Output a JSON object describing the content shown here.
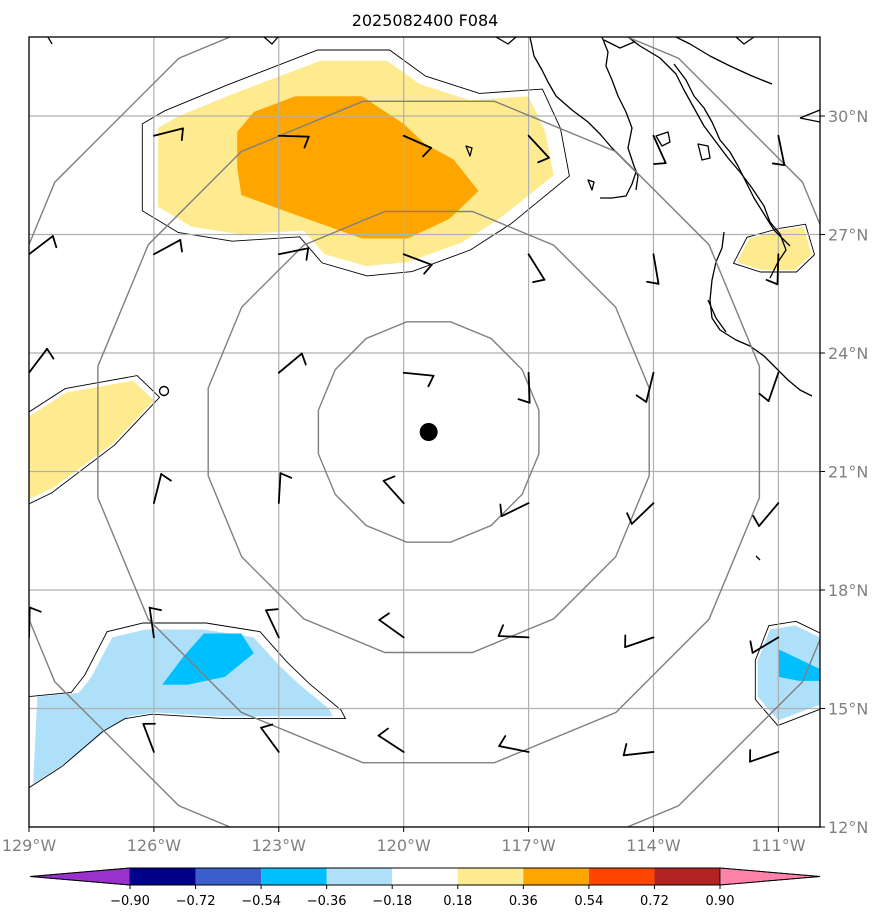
{
  "title": "2025082400 F084",
  "map": {
    "lon_range": [
      -129.0,
      -110.0
    ],
    "lat_range": [
      12.0,
      32.0
    ],
    "lon_ticks": [
      {
        "lon": -129,
        "label": "129°W"
      },
      {
        "lon": -126,
        "label": "126°W"
      },
      {
        "lon": -123,
        "label": "123°W"
      },
      {
        "lon": -120,
        "label": "120°W"
      },
      {
        "lon": -117,
        "label": "117°W"
      },
      {
        "lon": -114,
        "label": "114°W"
      },
      {
        "lon": -111,
        "label": "111°W"
      }
    ],
    "lat_ticks": [
      {
        "lat": 30,
        "label": "30°N"
      },
      {
        "lat": 27,
        "label": "27°N"
      },
      {
        "lat": 24,
        "label": "24°N"
      },
      {
        "lat": 21,
        "label": "21°N"
      },
      {
        "lat": 18,
        "label": "18°N"
      },
      {
        "lat": 15,
        "label": "15°N"
      },
      {
        "lat": 12,
        "label": "12°N"
      }
    ],
    "center": {
      "lon": -119.4,
      "lat": 22.0
    },
    "range_rings_deg": [
      2.7,
      5.4,
      8.1,
      10.8
    ],
    "ring_color": "#808080",
    "grid_color": "#b0b0b0"
  },
  "shaded_areas": [
    {
      "level": "0.18 to 0.36",
      "color": "#ffeb8f",
      "points": [
        [
          -125.9,
          29.7
        ],
        [
          -125.4,
          30.0
        ],
        [
          -124.0,
          30.6
        ],
        [
          -122.0,
          31.4
        ],
        [
          -120.4,
          31.4
        ],
        [
          -119.6,
          30.8
        ],
        [
          -118.4,
          30.4
        ],
        [
          -117.0,
          30.5
        ],
        [
          -116.6,
          29.6
        ],
        [
          -116.4,
          28.5
        ],
        [
          -117.7,
          27.4
        ],
        [
          -118.6,
          26.8
        ],
        [
          -119.9,
          26.3
        ],
        [
          -120.9,
          26.2
        ],
        [
          -121.9,
          26.5
        ],
        [
          -122.4,
          27.1
        ],
        [
          -123.9,
          27.0
        ],
        [
          -125.1,
          27.2
        ],
        [
          -125.9,
          27.7
        ]
      ]
    },
    {
      "level": "0.36 to 0.54",
      "color": "#ffa500",
      "points": [
        [
          -124.0,
          29.6
        ],
        [
          -123.6,
          30.1
        ],
        [
          -122.6,
          30.5
        ],
        [
          -121.0,
          30.5
        ],
        [
          -120.0,
          29.8
        ],
        [
          -119.5,
          29.3
        ],
        [
          -118.8,
          28.9
        ],
        [
          -118.2,
          28.1
        ],
        [
          -118.9,
          27.4
        ],
        [
          -119.9,
          26.9
        ],
        [
          -121.0,
          26.9
        ],
        [
          -122.6,
          27.5
        ],
        [
          -123.9,
          28.0
        ],
        [
          -124.0,
          28.7
        ]
      ]
    },
    {
      "level": "0.18 to 0.36",
      "color": "#ffeb8f",
      "points": [
        [
          -129.0,
          22.4
        ],
        [
          -128.1,
          23.0
        ],
        [
          -126.5,
          23.3
        ],
        [
          -126.0,
          22.8
        ],
        [
          -127.0,
          21.7
        ],
        [
          -128.4,
          20.6
        ],
        [
          -129.0,
          20.3
        ]
      ]
    },
    {
      "level": "0.18 to 0.36",
      "color": "#ffeb8f",
      "points": [
        [
          -111.0,
          27.1
        ],
        [
          -110.4,
          27.2
        ],
        [
          -110.2,
          26.5
        ],
        [
          -110.6,
          26.1
        ],
        [
          -111.4,
          26.1
        ],
        [
          -112.0,
          26.3
        ],
        [
          -111.7,
          26.9
        ]
      ]
    },
    {
      "level": "-0.36 to -0.18",
      "color": "#afe0fa",
      "points": [
        [
          -128.8,
          15.3
        ],
        [
          -127.8,
          15.4
        ],
        [
          -127.5,
          15.8
        ],
        [
          -127.0,
          16.8
        ],
        [
          -126.2,
          17.0
        ],
        [
          -124.8,
          17.0
        ],
        [
          -123.6,
          16.8
        ],
        [
          -123.0,
          16.1
        ],
        [
          -122.5,
          15.6
        ],
        [
          -121.8,
          15.0
        ],
        [
          -121.7,
          14.8
        ],
        [
          -122.6,
          14.8
        ],
        [
          -124.4,
          14.8
        ],
        [
          -126.0,
          14.9
        ],
        [
          -126.6,
          14.8
        ],
        [
          -127.1,
          14.5
        ],
        [
          -128.0,
          13.7
        ],
        [
          -128.9,
          13.1
        ]
      ]
    },
    {
      "level": "-0.54 to -0.36",
      "color": "#00bfff",
      "points": [
        [
          -125.3,
          16.3
        ],
        [
          -124.8,
          16.9
        ],
        [
          -123.9,
          16.9
        ],
        [
          -123.6,
          16.4
        ],
        [
          -124.3,
          15.8
        ],
        [
          -125.2,
          15.6
        ],
        [
          -125.8,
          15.6
        ]
      ]
    },
    {
      "level": "-0.36 to -0.18",
      "color": "#afe0fa",
      "points": [
        [
          -110.6,
          17.1
        ],
        [
          -110.0,
          16.8
        ],
        [
          -110.0,
          15.1
        ],
        [
          -111.0,
          14.7
        ],
        [
          -111.5,
          15.3
        ],
        [
          -111.5,
          16.2
        ],
        [
          -111.2,
          17.0
        ]
      ]
    },
    {
      "level": "-0.54 to -0.36",
      "color": "#00bfff",
      "points": [
        [
          -111.0,
          16.5
        ],
        [
          -110.0,
          16.0
        ],
        [
          -110.0,
          15.7
        ],
        [
          -110.5,
          15.7
        ],
        [
          -111.0,
          15.8
        ]
      ]
    }
  ],
  "wind_barb_positions": [
    [
      -126.0,
      29.5
    ],
    [
      -123.0,
      29.5
    ],
    [
      -120.0,
      29.5
    ],
    [
      -117.0,
      29.5
    ],
    [
      -114.0,
      29.5
    ],
    [
      -111.0,
      29.5
    ],
    [
      -129.0,
      26.5
    ],
    [
      -126.0,
      26.5
    ],
    [
      -123.0,
      26.5
    ],
    [
      -120.0,
      26.5
    ],
    [
      -117.0,
      26.5
    ],
    [
      -114.0,
      26.5
    ],
    [
      -111.0,
      26.5
    ],
    [
      -129.0,
      23.5
    ],
    [
      -123.0,
      23.5
    ],
    [
      -120.0,
      23.5
    ],
    [
      -117.0,
      23.5
    ],
    [
      -114.0,
      23.5
    ],
    [
      -111.0,
      23.5
    ],
    [
      -126.0,
      20.2
    ],
    [
      -123.0,
      20.2
    ],
    [
      -120.0,
      20.2
    ],
    [
      -117.0,
      20.2
    ],
    [
      -114.0,
      20.2
    ],
    [
      -111.0,
      20.2
    ],
    [
      -129.0,
      16.8
    ],
    [
      -126.0,
      16.8
    ],
    [
      -123.0,
      16.8
    ],
    [
      -120.0,
      16.8
    ],
    [
      -117.0,
      16.8
    ],
    [
      -114.0,
      16.8
    ],
    [
      -111.0,
      16.8
    ],
    [
      -126.0,
      13.9
    ],
    [
      -123.0,
      13.9
    ],
    [
      -120.0,
      13.9
    ],
    [
      -117.0,
      13.9
    ],
    [
      -114.0,
      13.9
    ],
    [
      -111.0,
      13.9
    ]
  ],
  "colorbar": {
    "colors": [
      "#9932cc",
      "#00008b",
      "#3a5fcd",
      "#00bfff",
      "#afe0fa",
      "#ffffff",
      "#ffeb8f",
      "#ffa500",
      "#ff4500",
      "#b22222",
      "#ff82ab"
    ],
    "labels": [
      "−0.90",
      "−0.72",
      "−0.54",
      "−0.36",
      "−0.18",
      "0.18",
      "0.36",
      "0.54",
      "0.72",
      "0.90"
    ]
  }
}
